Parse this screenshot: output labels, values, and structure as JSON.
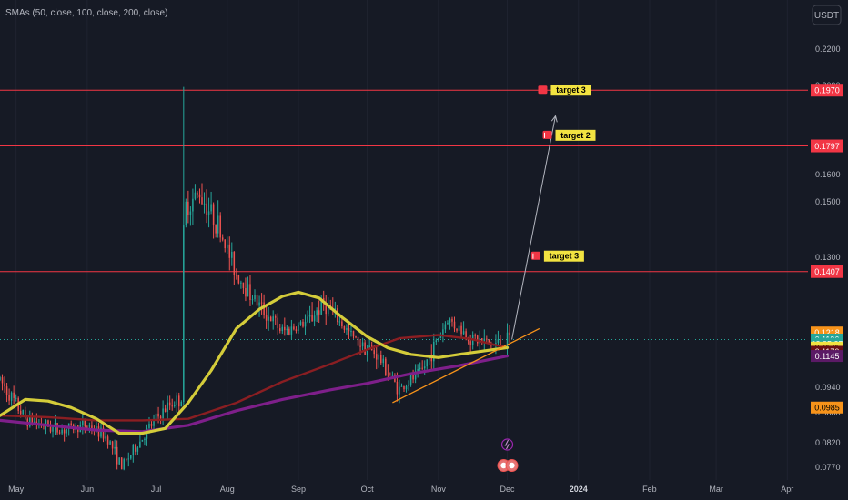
{
  "legend": "SMAs (50, close, 100, close, 200, close)",
  "currency": "USDT",
  "colors": {
    "background": "#161a25",
    "up": "#26a69a",
    "down": "#ef5350",
    "sma50": "#d4cc3a",
    "sma100": "#8a1e22",
    "sma200": "#7e1f8a",
    "hline": "#f23645",
    "trend": "#f7931a",
    "arrow": "#b2b5be",
    "current": "#26a69a"
  },
  "chart_data": {
    "type": "candlestick",
    "x_labels": [
      "May",
      "Jun",
      "Jul",
      "Aug",
      "Sep",
      "Oct",
      "Nov",
      "Dec",
      "2024",
      "Feb",
      "Mar",
      "Apr"
    ],
    "y_ticks": [
      "0.2200",
      "0.2090",
      "0.1600",
      "0.1500",
      "0.1300",
      "0.1020",
      "0.0940",
      "0.0880",
      "0.0820",
      "0.0770"
    ],
    "horizontal_levels": [
      {
        "label": "0.1970",
        "value": 0.197
      },
      {
        "label": "0.1797",
        "value": 0.1797
      },
      {
        "label": "0.1407",
        "value": 0.1407
      }
    ],
    "price_badges": [
      {
        "label": "0.1218",
        "bg": "#f7931a",
        "fg": "#ffffff",
        "value": 0.1218
      },
      {
        "label": "0.1196",
        "bg": "#26a69a",
        "fg": "#ffffff",
        "value": 0.1196
      },
      {
        "label": "02:35:35",
        "bg": "#26a69a",
        "fg": "#ffffff",
        "value": 0.1183
      },
      {
        "label": "0.1171",
        "bg": "#f2e341",
        "fg": "#000000",
        "value": 0.1171
      },
      {
        "label": "0.1170",
        "bg": "#6b0f14",
        "fg": "#ffffff",
        "value": 0.1158
      },
      {
        "label": "0.1145",
        "bg": "#5b1a66",
        "fg": "#ffffff",
        "value": 0.1145
      },
      {
        "label": "0.0985",
        "bg": "#f7931a",
        "fg": "#000000",
        "value": 0.0985
      }
    ],
    "targets": [
      {
        "label": "target 3",
        "value": 0.197,
        "date": "2023-12-20"
      },
      {
        "label": "target 2",
        "value": 0.183,
        "date": "2023-12-22"
      },
      {
        "label": "target 3",
        "value": 0.1455,
        "date": "2023-12-17"
      }
    ],
    "sma50": [
      [
        "2023-04-24",
        0.096
      ],
      [
        "2023-05-05",
        0.101
      ],
      [
        "2023-05-15",
        0.1005
      ],
      [
        "2023-05-25",
        0.0985
      ],
      [
        "2023-06-05",
        0.095
      ],
      [
        "2023-06-15",
        0.0905
      ],
      [
        "2023-06-25",
        0.0905
      ],
      [
        "2023-07-05",
        0.092
      ],
      [
        "2023-07-15",
        0.1
      ],
      [
        "2023-07-25",
        0.11
      ],
      [
        "2023-08-05",
        0.123
      ],
      [
        "2023-08-15",
        0.129
      ],
      [
        "2023-08-25",
        0.133
      ],
      [
        "2023-09-01",
        0.1343
      ],
      [
        "2023-09-10",
        0.1325
      ],
      [
        "2023-09-20",
        0.1265
      ],
      [
        "2023-10-01",
        0.1205
      ],
      [
        "2023-10-10",
        0.117
      ],
      [
        "2023-10-20",
        0.115
      ],
      [
        "2023-11-01",
        0.114
      ],
      [
        "2023-11-10",
        0.115
      ],
      [
        "2023-11-20",
        0.116
      ],
      [
        "2023-12-01",
        0.1171
      ]
    ],
    "sma100": [
      [
        "2023-04-24",
        0.096
      ],
      [
        "2023-05-15",
        0.0955
      ],
      [
        "2023-06-05",
        0.0945
      ],
      [
        "2023-06-25",
        0.0945
      ],
      [
        "2023-07-15",
        0.095
      ],
      [
        "2023-08-05",
        0.1
      ],
      [
        "2023-08-25",
        0.1065
      ],
      [
        "2023-09-15",
        0.112
      ],
      [
        "2023-10-01",
        0.1165
      ],
      [
        "2023-10-15",
        0.12
      ],
      [
        "2023-11-01",
        0.121
      ],
      [
        "2023-11-15",
        0.1198
      ],
      [
        "2023-12-01",
        0.117
      ]
    ],
    "sma200": [
      [
        "2023-04-24",
        0.0945
      ],
      [
        "2023-05-15",
        0.093
      ],
      [
        "2023-06-05",
        0.0915
      ],
      [
        "2023-06-25",
        0.091
      ],
      [
        "2023-07-15",
        0.093
      ],
      [
        "2023-08-05",
        0.0975
      ],
      [
        "2023-08-25",
        0.101
      ],
      [
        "2023-09-15",
        0.104
      ],
      [
        "2023-10-01",
        0.106
      ],
      [
        "2023-10-20",
        0.109
      ],
      [
        "2023-11-10",
        0.1115
      ],
      [
        "2023-12-01",
        0.1145
      ]
    ],
    "trendline": [
      [
        "2023-10-12",
        0.1
      ],
      [
        "2023-12-15",
        0.123
      ]
    ],
    "projection": [
      [
        "2023-12-03",
        0.1196
      ],
      [
        "2023-12-22",
        0.189
      ]
    ],
    "current_price": 0.1196,
    "x_range": [
      "2023-04-24",
      "2024-04-10"
    ],
    "y_range": [
      0.076,
      0.225
    ]
  }
}
